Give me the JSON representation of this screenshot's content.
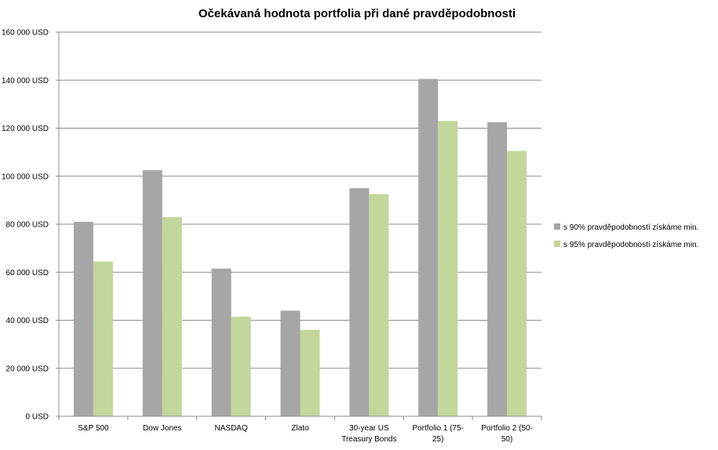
{
  "chart_data": {
    "type": "bar",
    "title": "Očekávaná hodnota portfolia při dané pravděpodobnosti",
    "xlabel": "",
    "ylabel": "",
    "categories": [
      [
        "S&P 500"
      ],
      [
        "Dow Jones"
      ],
      [
        "NASDAQ"
      ],
      [
        "Zlato"
      ],
      [
        "30-year US",
        "Treasury Bonds"
      ],
      [
        "Portfolio 1 (75-",
        "25)"
      ],
      [
        "Portfolio 2 (50-",
        "50)"
      ]
    ],
    "series": [
      {
        "name": "s 90% pravděpodobností  získáme min.",
        "color": "#a6a6a6",
        "values": [
          81000,
          102500,
          61500,
          44000,
          95000,
          140500,
          122500
        ]
      },
      {
        "name": "s 95% pravděpodobností  získáme min.",
        "color": "#c3d69b",
        "values": [
          64500,
          83000,
          41500,
          36000,
          92500,
          123000,
          110500
        ]
      }
    ],
    "ylim": [
      0,
      160000
    ],
    "y_ticks": [
      "0 USD",
      "20 000 USD",
      "40 000 USD",
      "60 000 USD",
      "80 000 USD",
      "100 000 USD",
      "120 000 USD",
      "140 000 USD",
      "160 000 USD"
    ],
    "grid": true,
    "legend_position": "right"
  }
}
